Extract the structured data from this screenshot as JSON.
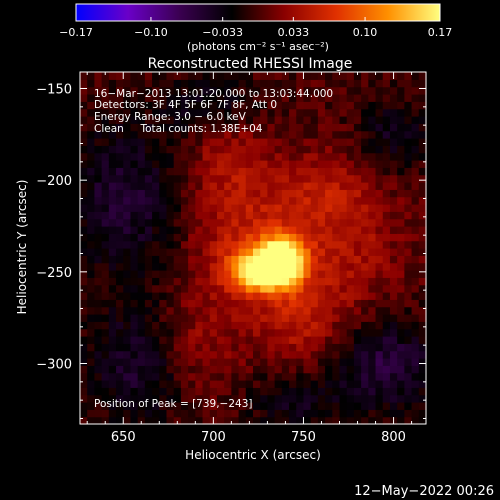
{
  "chart_data": {
    "type": "heatmap",
    "title": "Reconstructed RHESSI Image",
    "xlabel": "Heliocentric X (arcsec)",
    "ylabel": "Heliocentric Y (arcsec)",
    "xlim": [
      626,
      818
    ],
    "ylim": [
      -333,
      -141
    ],
    "x_ticks": [
      650,
      700,
      750,
      800
    ],
    "y_ticks": [
      -150,
      -200,
      -250,
      -300
    ],
    "colorbar": {
      "min": -0.17,
      "max": 0.17,
      "ticks": [
        -0.17,
        -0.1,
        -0.033,
        0.033,
        0.1,
        0.17
      ],
      "tick_labels": [
        "−0.17",
        "−0.10",
        "−0.033",
        "0.033",
        "0.10",
        "0.17"
      ],
      "units_label": "(photons cm⁻² s⁻¹ asec⁻²)",
      "colors": [
        "#0000ff",
        "#6a00c8",
        "#3a0050",
        "#000000",
        "#8a0000",
        "#e03000",
        "#ff9000",
        "#ffff80"
      ]
    },
    "annotations": [
      "16−Mar−2013 13:01:20.000 to 13:03:44.000",
      "Detectors: 3F 4F 5F 6F 7F 8F, Att 0",
      "Energy Range: 3.0 − 6.0 keV",
      "Clean     Total counts: 1.38E+04"
    ],
    "peak_label": "Position of Peak = [739,−243]",
    "peak": {
      "x": 739,
      "y": -243,
      "value": 0.17
    },
    "sources": [
      {
        "x": 739,
        "y": -243,
        "sx": 9,
        "sy": 9,
        "amp": 0.17
      },
      {
        "x": 725,
        "y": -249,
        "sx": 11,
        "sy": 8,
        "amp": 0.14
      },
      {
        "x": 716,
        "y": -235,
        "sx": 20,
        "sy": 28,
        "amp": 0.05
      },
      {
        "x": 748,
        "y": -272,
        "sx": 16,
        "sy": 22,
        "amp": 0.045
      },
      {
        "x": 758,
        "y": -210,
        "sx": 20,
        "sy": 18,
        "amp": 0.04
      },
      {
        "x": 688,
        "y": -292,
        "sx": 16,
        "sy": 20,
        "amp": 0.035
      },
      {
        "x": 708,
        "y": -185,
        "sx": 14,
        "sy": 16,
        "amp": 0.035
      },
      {
        "x": 780,
        "y": -240,
        "sx": 18,
        "sy": 30,
        "amp": 0.03
      },
      {
        "x": 650,
        "y": -210,
        "sx": 22,
        "sy": 30,
        "amp": -0.05
      },
      {
        "x": 660,
        "y": -300,
        "sx": 22,
        "sy": 22,
        "amp": -0.05
      },
      {
        "x": 795,
        "y": -300,
        "sx": 20,
        "sy": 18,
        "amp": -0.06
      },
      {
        "x": 800,
        "y": -175,
        "sx": 14,
        "sy": 14,
        "amp": -0.04
      },
      {
        "x": 700,
        "y": -160,
        "sx": 20,
        "sy": 12,
        "amp": -0.035
      },
      {
        "x": 745,
        "y": -320,
        "sx": 18,
        "sy": 12,
        "amp": -0.04
      }
    ]
  },
  "footer": {
    "timestamp": "12−May−2022 00:26"
  }
}
